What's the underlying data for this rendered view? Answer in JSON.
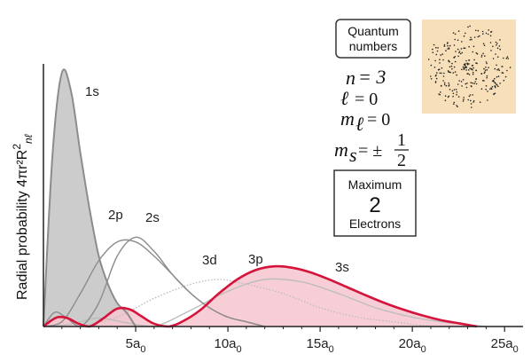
{
  "chart_data": {
    "type": "line",
    "ylabel": "Radial probability 4πr²R",
    "ylabel_sub": "nℓ",
    "ylabel_sup": "2",
    "xlim": [
      0,
      26
    ],
    "x_ticks": [
      {
        "value": 5,
        "num": "5a",
        "sub": "0"
      },
      {
        "value": 10,
        "num": "10a",
        "sub": "0"
      },
      {
        "value": 15,
        "num": "15a",
        "sub": "0"
      },
      {
        "value": 20,
        "num": "20a",
        "sub": "0"
      },
      {
        "value": 25,
        "num": "25a",
        "sub": "0"
      }
    ],
    "series": [
      {
        "name": "1s",
        "highlight": false,
        "color": "#8c8c8c",
        "fill": "#c7c7c7",
        "x": [
          0,
          0.5,
          1.0,
          1.5,
          2.0,
          2.5,
          3.0,
          3.5,
          4.0,
          4.5,
          5.0
        ],
        "y": [
          0,
          0.37,
          0.54,
          0.5,
          0.37,
          0.25,
          0.15,
          0.09,
          0.05,
          0.03,
          0
        ]
      },
      {
        "name": "2p",
        "highlight": false,
        "color": "#8c8c8c",
        "x": [
          0,
          1,
          2,
          3,
          4,
          5,
          6,
          7,
          8,
          9,
          10,
          11,
          12
        ],
        "y": [
          0,
          0.01,
          0.07,
          0.14,
          0.18,
          0.18,
          0.15,
          0.11,
          0.07,
          0.04,
          0.02,
          0.01,
          0
        ]
      },
      {
        "name": "2s",
        "highlight": false,
        "color": "#8c8c8c",
        "x": [
          0,
          0.6,
          1.2,
          2.0,
          3.0,
          4.0,
          5.0,
          6.0,
          7.0,
          8.0,
          9.0,
          10.0,
          11.0,
          12.0
        ],
        "y": [
          0,
          0.03,
          0.02,
          0,
          0.05,
          0.15,
          0.19,
          0.16,
          0.11,
          0.07,
          0.04,
          0.02,
          0.01,
          0
        ]
      },
      {
        "name": "3d",
        "highlight": false,
        "color": "#bdbdbd",
        "x": [
          2,
          4,
          6,
          8,
          9.5,
          11,
          13,
          15,
          17,
          19,
          21
        ],
        "y": [
          0,
          0.02,
          0.06,
          0.09,
          0.1,
          0.09,
          0.07,
          0.04,
          0.02,
          0.01,
          0
        ]
      },
      {
        "name": "3p",
        "highlight": false,
        "color": "#bdbdbd",
        "x": [
          0,
          1.5,
          3,
          4.5,
          6,
          8,
          10,
          12,
          14,
          16,
          18,
          20,
          22,
          24
        ],
        "y": [
          0,
          0.005,
          0.018,
          0.008,
          0,
          0.035,
          0.075,
          0.1,
          0.095,
          0.07,
          0.04,
          0.02,
          0.008,
          0
        ]
      },
      {
        "name": "3s",
        "highlight": true,
        "color": "#d6133a",
        "fill": "#f7c6cf",
        "x": [
          0,
          0.4,
          0.8,
          1.3,
          1.9,
          2.5,
          3.2,
          4.0,
          4.7,
          5.3,
          6.0,
          6.8,
          7.6,
          8.5,
          9.5,
          10.5,
          11.5,
          12.5,
          13.5,
          14.5,
          15.5,
          16.5,
          17.5,
          18.5,
          19.5,
          20.5,
          21.5,
          22.5,
          23.5
        ],
        "y": [
          0,
          0.012,
          0.02,
          0.018,
          0.006,
          0,
          0.016,
          0.038,
          0.036,
          0.022,
          0.006,
          0,
          0.012,
          0.035,
          0.07,
          0.1,
          0.12,
          0.128,
          0.125,
          0.115,
          0.1,
          0.083,
          0.066,
          0.05,
          0.036,
          0.024,
          0.014,
          0.007,
          0
        ]
      }
    ]
  },
  "quantum_box": {
    "title_line1": "Quantum",
    "title_line2": "numbers",
    "n_sym": "n",
    "n_val": "= 3",
    "l_sym": "ℓ",
    "l_val": "= 0",
    "ml_sym": "m",
    "ml_sub": "ℓ",
    "ml_val": "= 0",
    "ms_sym": "m",
    "ms_sub": "s",
    "ms_val": "= ±",
    "ms_frac_num": "1",
    "ms_frac_den": "2",
    "max_label": "Maximum",
    "max_value": "2",
    "max_units": "Electrons"
  },
  "orbital_image": {
    "background": "#f7dfb9",
    "dot_color": "#222222"
  },
  "colors": {
    "axis": "#222222",
    "highlight": "#d6133a"
  }
}
